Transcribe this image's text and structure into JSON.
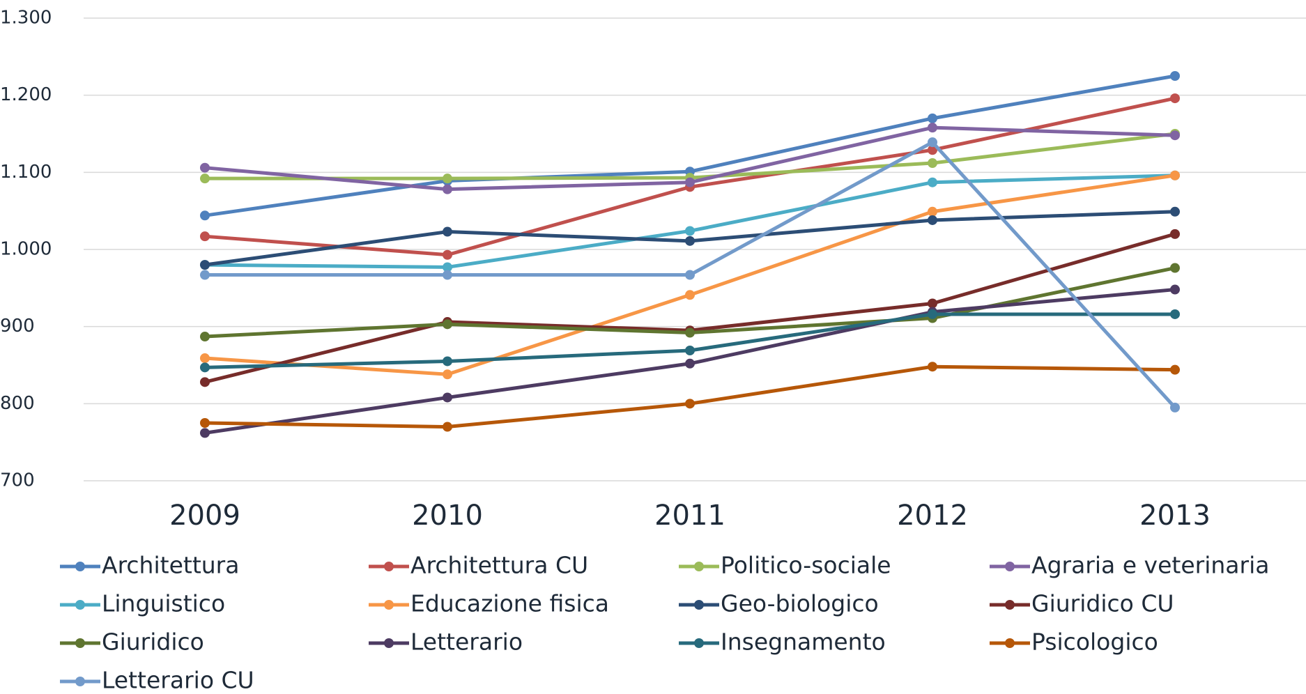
{
  "chart_data": {
    "type": "line",
    "categories": [
      "2009",
      "2010",
      "2011",
      "2012",
      "2013"
    ],
    "ylim": [
      700,
      1300
    ],
    "yticks": [
      700,
      800,
      900,
      {
        "value": 1000,
        "label": "1.000"
      },
      {
        "value": 1100,
        "label": "1.100"
      },
      {
        "value": 1200,
        "label": "1.200"
      },
      {
        "value": 1300,
        "label": "1.300"
      }
    ],
    "grid": true,
    "legend": "bottom",
    "series": [
      {
        "name": "Architettura",
        "color": "#4f81bd",
        "values": [
          1044,
          1089,
          1101,
          1170,
          1225
        ]
      },
      {
        "name": "Architettura CU",
        "color": "#c0504d",
        "values": [
          1017,
          993,
          1081,
          1129,
          1196
        ]
      },
      {
        "name": "Politico-sociale",
        "color": "#9bbb59",
        "values": [
          1092,
          1092,
          1093,
          1112,
          1150
        ]
      },
      {
        "name": "Agraria e veterinaria",
        "color": "#8064a2",
        "values": [
          1106,
          1078,
          1087,
          1158,
          1148
        ]
      },
      {
        "name": "Linguistico",
        "color": "#4bacc6",
        "values": [
          980,
          977,
          1024,
          1087,
          1096
        ]
      },
      {
        "name": "Educazione fisica",
        "color": "#f79646",
        "values": [
          859,
          838,
          941,
          1049,
          1096
        ]
      },
      {
        "name": "Geo-biologico",
        "color": "#2c4d75",
        "values": [
          980,
          1023,
          1011,
          1038,
          1049
        ]
      },
      {
        "name": "Giuridico CU",
        "color": "#772c2a",
        "values": [
          828,
          906,
          895,
          930,
          1020
        ]
      },
      {
        "name": "Giuridico",
        "color": "#5f7530",
        "values": [
          887,
          903,
          892,
          911,
          976
        ]
      },
      {
        "name": "Letterario",
        "color": "#4d3b62",
        "values": [
          762,
          808,
          852,
          919,
          948
        ]
      },
      {
        "name": "Insegnamento",
        "color": "#276a7c",
        "values": [
          847,
          855,
          869,
          916,
          916
        ]
      },
      {
        "name": "Psicologico",
        "color": "#b65708",
        "values": [
          775,
          770,
          800,
          848,
          844
        ]
      },
      {
        "name": "Letterario CU",
        "color": "#729aca",
        "values": [
          967,
          967,
          967,
          1139,
          795
        ]
      }
    ]
  }
}
